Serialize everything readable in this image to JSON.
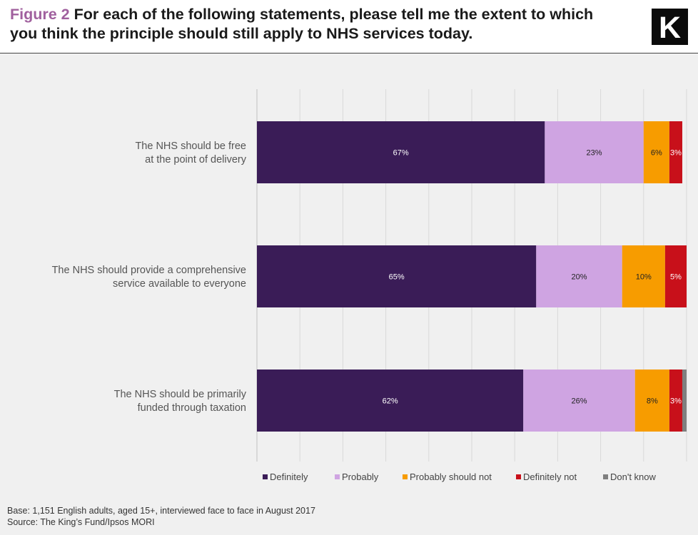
{
  "header": {
    "figure_label": "Figure 2",
    "title": "For each of the following statements, please tell me the extent to which you think the principle should still apply to NHS services today.",
    "logo_letter": "K"
  },
  "footer": {
    "base_note": "Base: 1,151 English adults, aged 15+, interviewed face to face in August 2017",
    "source_note": "Source: The King’s Fund/Ipsos  MORI"
  },
  "colors": {
    "definitely": "#3a1c57",
    "probably": "#cfa4e2",
    "probably_should_not": "#f79c00",
    "definitely_not": "#c8101a",
    "dont_know": "#7f7f7f"
  },
  "chart_data": {
    "type": "bar",
    "orientation": "horizontal",
    "stacked": true,
    "title": "For each of the following statements, please tell me the extent to which you think the principle should still apply to NHS services today.",
    "xlim": [
      0,
      100
    ],
    "grid": true,
    "legend_position": "bottom",
    "categories": [
      [
        "The NHS should be free",
        "at the point of delivery"
      ],
      [
        "The NHS should provide a comprehensive",
        "service available to everyone"
      ],
      [
        "The NHS should be primarily",
        "funded through taxation"
      ]
    ],
    "series": [
      {
        "name": "Definitely",
        "color_key": "definitely",
        "values": [
          67,
          65,
          62
        ],
        "labels": [
          "67%",
          "65%",
          "62%"
        ]
      },
      {
        "name": "Probably",
        "color_key": "probably",
        "values": [
          23,
          20,
          26
        ],
        "labels": [
          "23%",
          "20%",
          "26%"
        ]
      },
      {
        "name": "Probably should not",
        "color_key": "probably_should_not",
        "values": [
          6,
          10,
          8
        ],
        "labels": [
          "6%",
          "10%",
          "8%"
        ]
      },
      {
        "name": "Definitely not",
        "color_key": "definitely_not",
        "values": [
          3,
          5,
          3
        ],
        "labels": [
          "3%",
          "5%",
          "3%"
        ]
      },
      {
        "name": "Don't know",
        "color_key": "dont_know",
        "values": [
          0,
          0,
          1
        ],
        "labels": [
          "",
          "",
          ""
        ]
      }
    ]
  }
}
